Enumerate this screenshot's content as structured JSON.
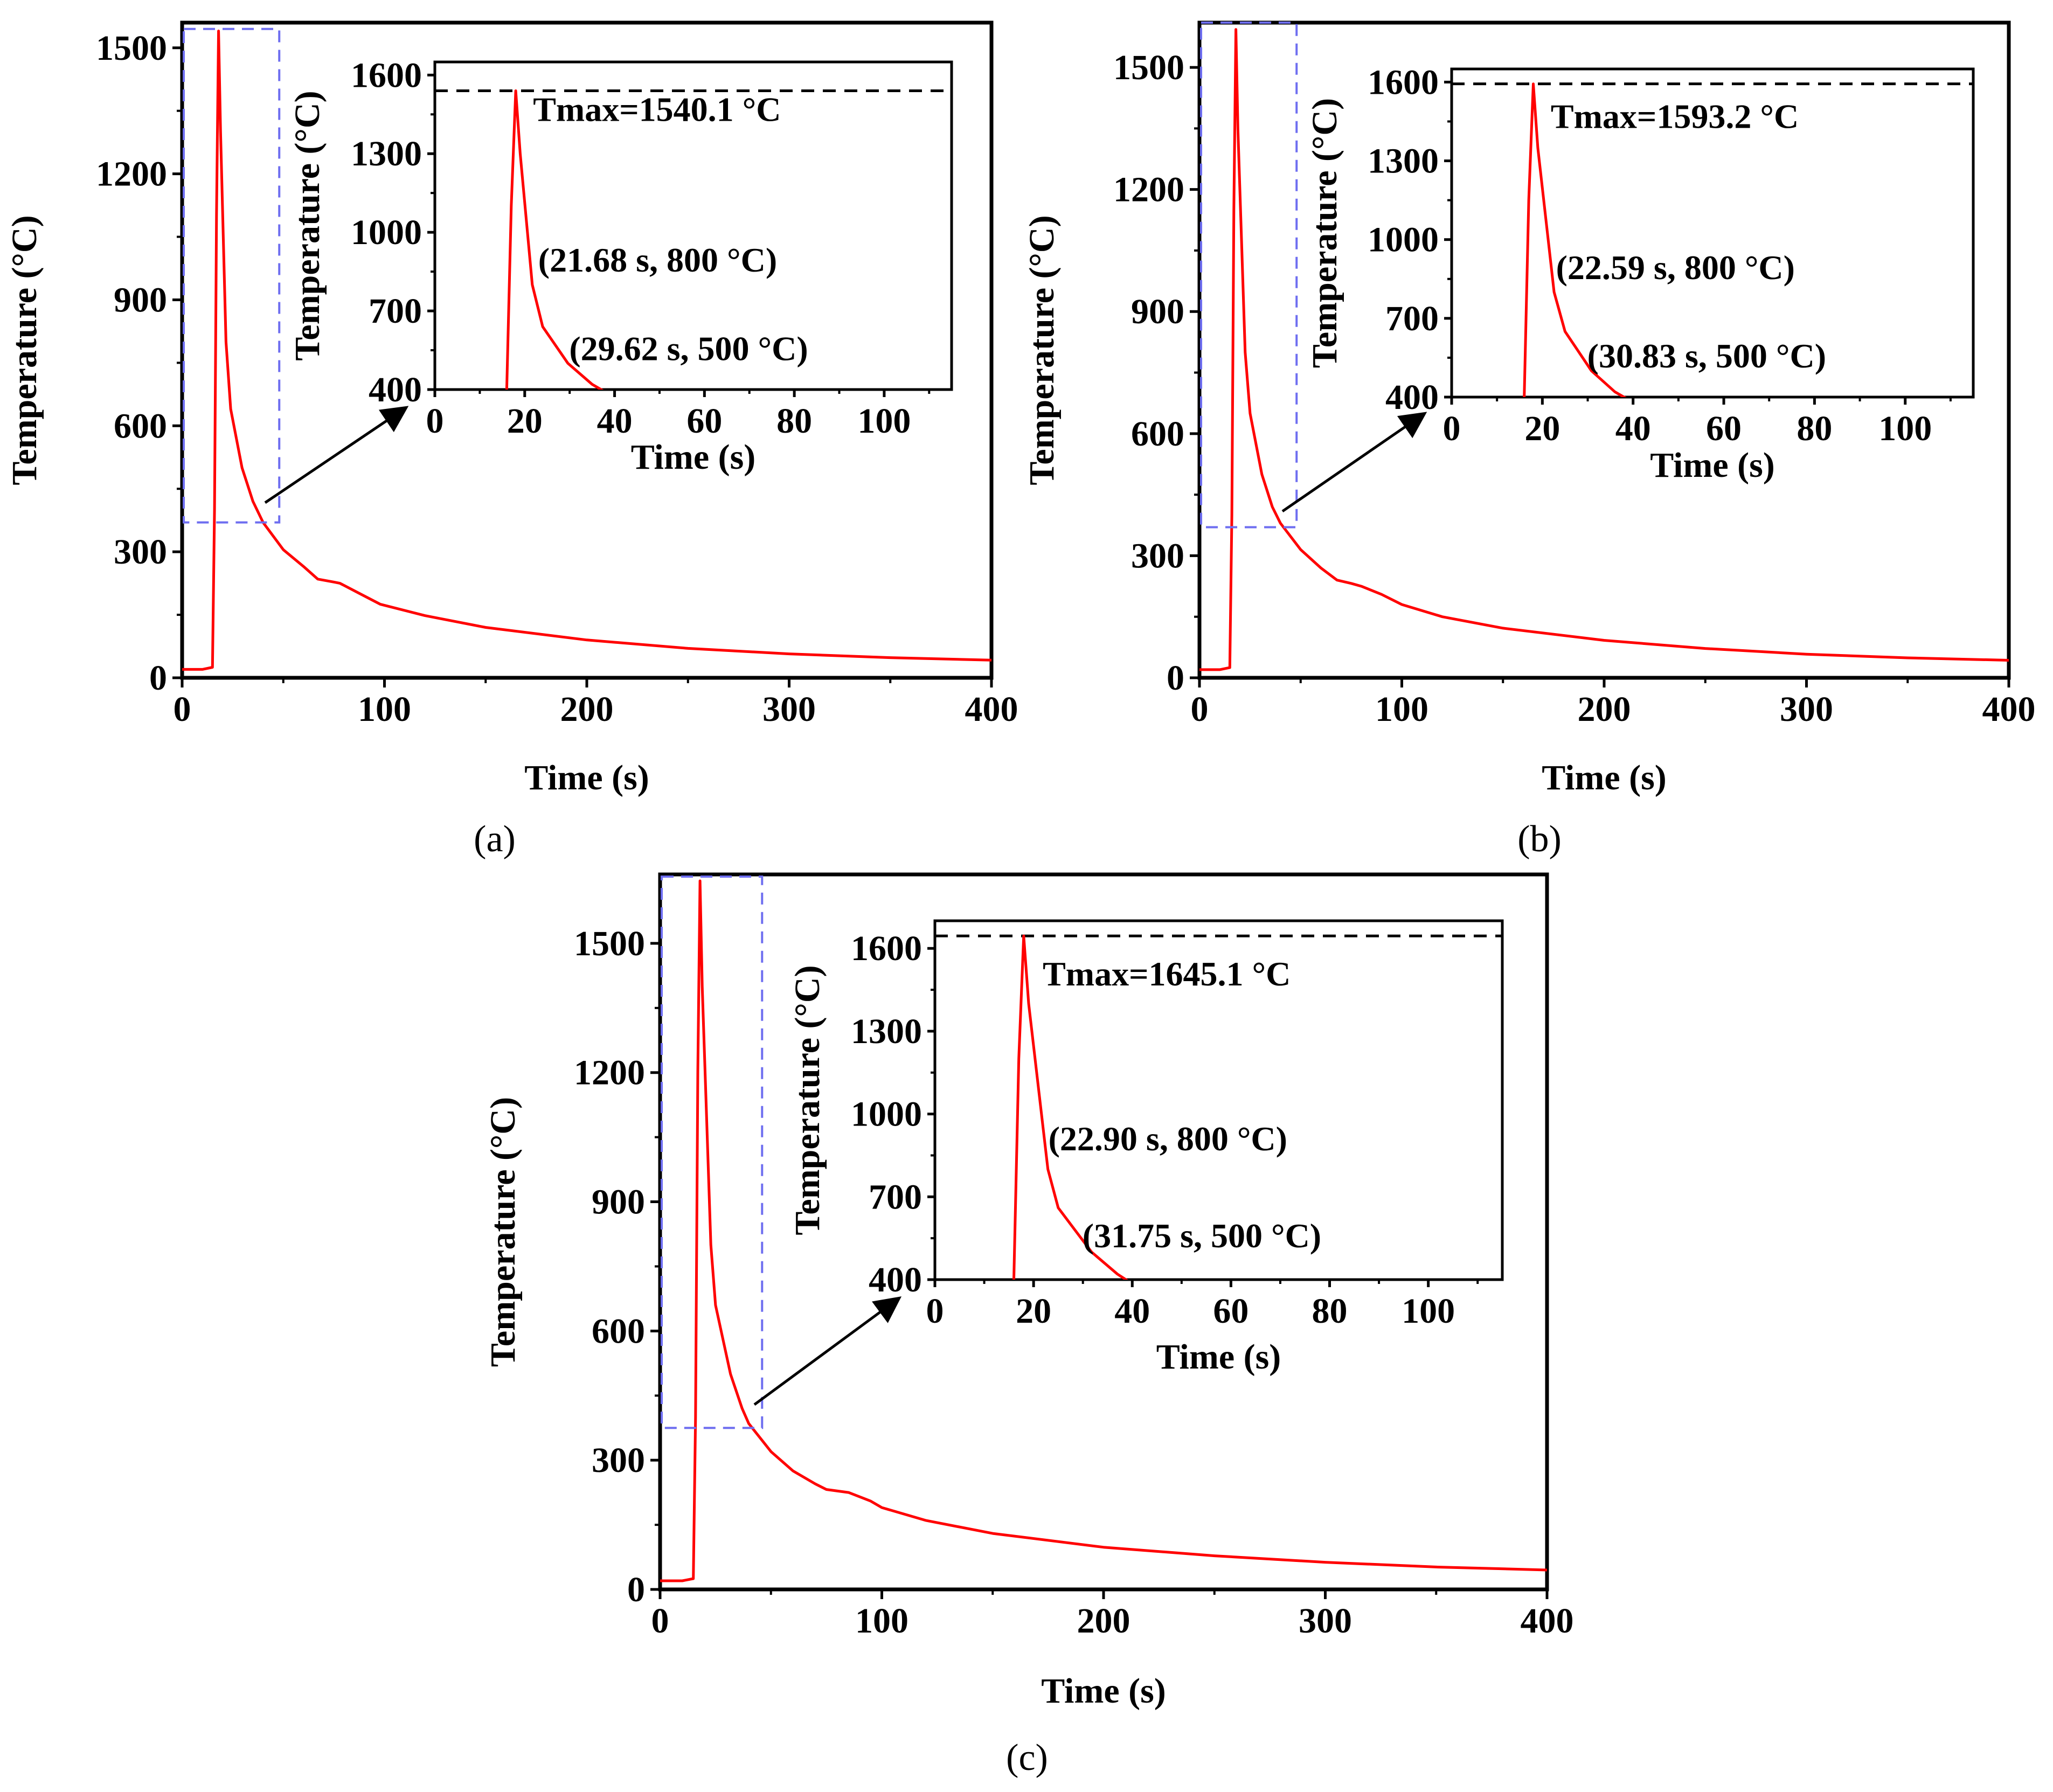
{
  "chart_data": [
    {
      "panel": "(a)",
      "type": "line",
      "xlabel": "Time (s)",
      "ylabel": "Temperature (°C)",
      "xlim": [
        0,
        400
      ],
      "ylim": [
        0,
        1560
      ],
      "xticks": [
        0,
        100,
        200,
        300,
        400
      ],
      "yticks": [
        0,
        300,
        600,
        900,
        1200,
        1500
      ],
      "series": [
        {
          "name": "temperature",
          "color": "#ff0000",
          "x": [
            0,
            10,
            15,
            16,
            17,
            18,
            19,
            21.68,
            24,
            29.62,
            35,
            40,
            50,
            60,
            67,
            75,
            78,
            88,
            98,
            120,
            150,
            200,
            250,
            300,
            350,
            400
          ],
          "y": [
            20,
            20,
            25,
            400,
            1100,
            1540.1,
            1300,
            800,
            640,
            500,
            420,
            370,
            305,
            265,
            235,
            228,
            225,
            200,
            175,
            148,
            120,
            90,
            70,
            57,
            48,
            42
          ]
        }
      ],
      "zoom_box": {
        "x": [
          0,
          48
        ],
        "y": [
          370,
          1545
        ]
      },
      "inset": {
        "xlabel": "Time (s)",
        "ylabel": "Temperature (°C)",
        "xlim": [
          0,
          115
        ],
        "ylim": [
          400,
          1650
        ],
        "xticks": [
          0,
          20,
          40,
          60,
          80,
          100
        ],
        "yticks": [
          400,
          700,
          1000,
          1300,
          1600
        ],
        "tmax_line": 1540.1,
        "annotations": [
          "Tmax=1540.1 °C",
          "(21.68 s, 800 °C)",
          "(29.62 s, 500 °C)"
        ]
      }
    },
    {
      "panel": "(b)",
      "type": "line",
      "xlabel": "Time (s)",
      "ylabel": "Temperature (°C)",
      "xlim": [
        0,
        400
      ],
      "ylim": [
        0,
        1610
      ],
      "xticks": [
        0,
        100,
        200,
        300,
        400
      ],
      "yticks": [
        0,
        300,
        600,
        900,
        1200,
        1500
      ],
      "series": [
        {
          "name": "temperature",
          "color": "#ff0000",
          "x": [
            0,
            10,
            15,
            16,
            17,
            18,
            19,
            22.59,
            25,
            30.83,
            36,
            40,
            50,
            60,
            68,
            75,
            80,
            90,
            100,
            120,
            150,
            200,
            250,
            300,
            350,
            400
          ],
          "y": [
            20,
            20,
            25,
            400,
            1150,
            1593.2,
            1350,
            800,
            650,
            500,
            420,
            380,
            315,
            270,
            240,
            232,
            225,
            205,
            180,
            150,
            122,
            92,
            72,
            58,
            49,
            43
          ]
        }
      ],
      "zoom_box": {
        "x": [
          0,
          48
        ],
        "y": [
          370,
          1610
        ]
      },
      "inset": {
        "xlabel": "Time (s)",
        "ylabel": "Temperature (°C)",
        "xlim": [
          0,
          115
        ],
        "ylim": [
          400,
          1650
        ],
        "xticks": [
          0,
          20,
          40,
          60,
          80,
          100
        ],
        "yticks": [
          400,
          700,
          1000,
          1300,
          1600
        ],
        "tmax_line": 1593.2,
        "annotations": [
          "Tmax=1593.2 °C",
          "(22.59 s, 800 °C)",
          "(30.83 s, 500 °C)"
        ]
      }
    },
    {
      "panel": "(c)",
      "type": "line",
      "xlabel": "Time (s)",
      "ylabel": "Temperature (°C)",
      "xlim": [
        0,
        400
      ],
      "ylim": [
        0,
        1660
      ],
      "xticks": [
        0,
        100,
        200,
        300,
        400
      ],
      "yticks": [
        0,
        300,
        600,
        900,
        1200,
        1500
      ],
      "series": [
        {
          "name": "temperature",
          "color": "#ff0000",
          "x": [
            0,
            10,
            15,
            16,
            17,
            18,
            19,
            22.9,
            25,
            31.75,
            37,
            40,
            50,
            60,
            70,
            75,
            85,
            95,
            100,
            120,
            150,
            200,
            250,
            300,
            350,
            400
          ],
          "y": [
            20,
            20,
            25,
            400,
            1200,
            1645.1,
            1400,
            800,
            660,
            500,
            420,
            385,
            320,
            275,
            245,
            232,
            225,
            205,
            190,
            160,
            130,
            98,
            78,
            63,
            52,
            45
          ]
        }
      ],
      "zoom_box": {
        "x": [
          0,
          46
        ],
        "y": [
          375,
          1655
        ]
      },
      "inset": {
        "xlabel": "Time (s)",
        "ylabel": "Temperature (°C)",
        "xlim": [
          0,
          115
        ],
        "ylim": [
          400,
          1700
        ],
        "xticks": [
          0,
          20,
          40,
          60,
          80,
          100
        ],
        "yticks": [
          400,
          700,
          1000,
          1300,
          1600
        ],
        "tmax_line": 1645.1,
        "annotations": [
          "Tmax=1645.1 °C",
          "(22.90 s, 800 °C)",
          "(31.75 s, 500 °C)"
        ]
      }
    }
  ]
}
